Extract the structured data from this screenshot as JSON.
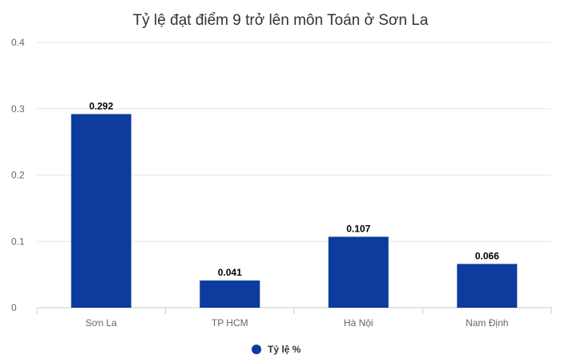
{
  "chart_data": {
    "type": "bar",
    "title": "Tỷ lệ đạt điểm 9 trở lên môn Toán ở Sơn La",
    "categories": [
      "Sơn La",
      "TP HCM",
      "Hà Nội",
      "Nam Định"
    ],
    "series": [
      {
        "name": "Tỷ lệ %",
        "values": [
          0.292,
          0.041,
          0.107,
          0.066
        ],
        "color": "#0d3b9e"
      }
    ],
    "data_labels": [
      "0.292",
      "0.041",
      "0.107",
      "0.066"
    ],
    "ylim": [
      0,
      0.4
    ],
    "yticks": [
      0,
      0.1,
      0.2,
      0.3,
      0.4
    ],
    "ytick_labels": [
      "0",
      "0.1",
      "0.2",
      "0.3",
      "0.4"
    ],
    "grid": true,
    "legend_position": "bottom-center"
  }
}
